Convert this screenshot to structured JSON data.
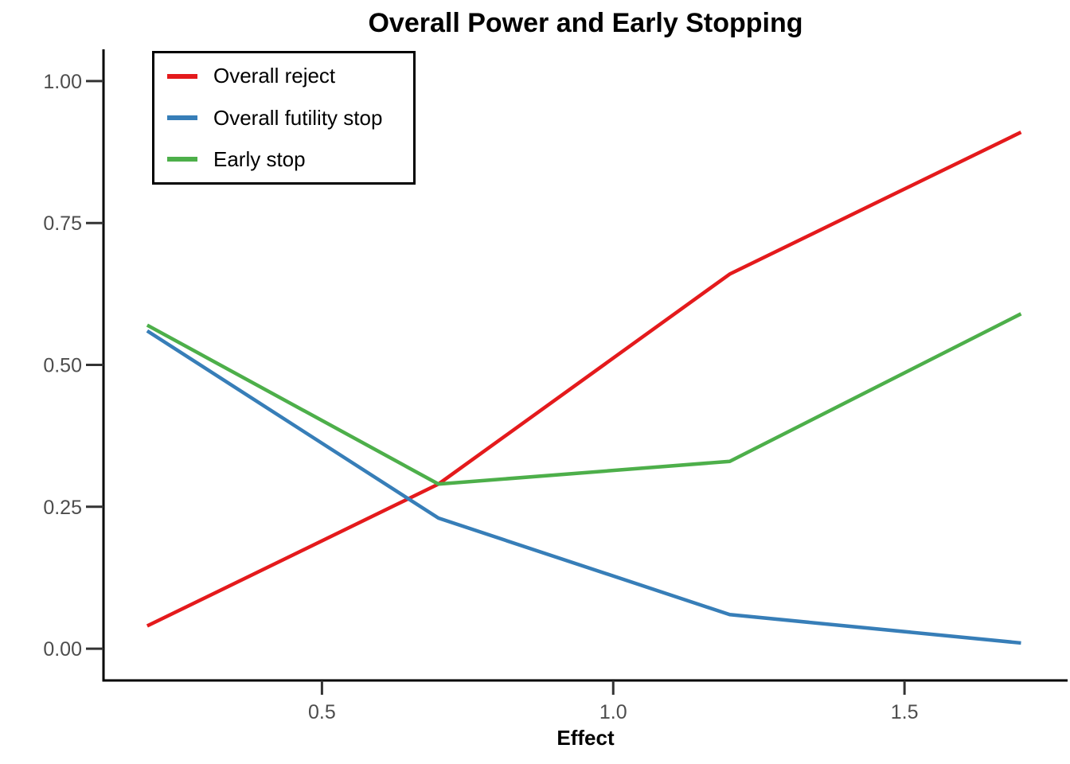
{
  "title": "Overall Power and Early Stopping",
  "xlabel": "Effect",
  "colors": {
    "background": "#ffffff",
    "axis_line": "#000000",
    "tick_mark": "#333333",
    "tick_label": "#4d4d4d",
    "title_text": "#000000",
    "legend_border": "#000000"
  },
  "chart_data": {
    "type": "line",
    "title": "Overall Power and Early Stopping",
    "xlabel": "Effect",
    "ylabel": "",
    "x": [
      0.2,
      0.7,
      1.2,
      1.7
    ],
    "series": [
      {
        "name": "Overall reject",
        "color": "#E41A1C",
        "values": [
          0.04,
          0.29,
          0.66,
          0.91
        ]
      },
      {
        "name": "Overall futility stop",
        "color": "#377EB8",
        "values": [
          0.56,
          0.23,
          0.06,
          0.01
        ]
      },
      {
        "name": "Early stop",
        "color": "#4DAF4A",
        "values": [
          0.57,
          0.29,
          0.33,
          0.59
        ]
      }
    ],
    "xlim": [
      0.125,
      1.78
    ],
    "ylim": [
      -0.056,
      1.056
    ],
    "x_ticks": [
      0.5,
      1.0,
      1.5
    ],
    "x_tick_labels": [
      "0.5",
      "1.0",
      "1.5"
    ],
    "y_ticks": [
      0.0,
      0.25,
      0.5,
      0.75,
      1.0
    ],
    "y_tick_labels": [
      "0.00",
      "0.25",
      "0.50",
      "0.75",
      "1.00"
    ],
    "grid": false,
    "legend_position": "top-left-inside",
    "line_width": 4.5
  }
}
